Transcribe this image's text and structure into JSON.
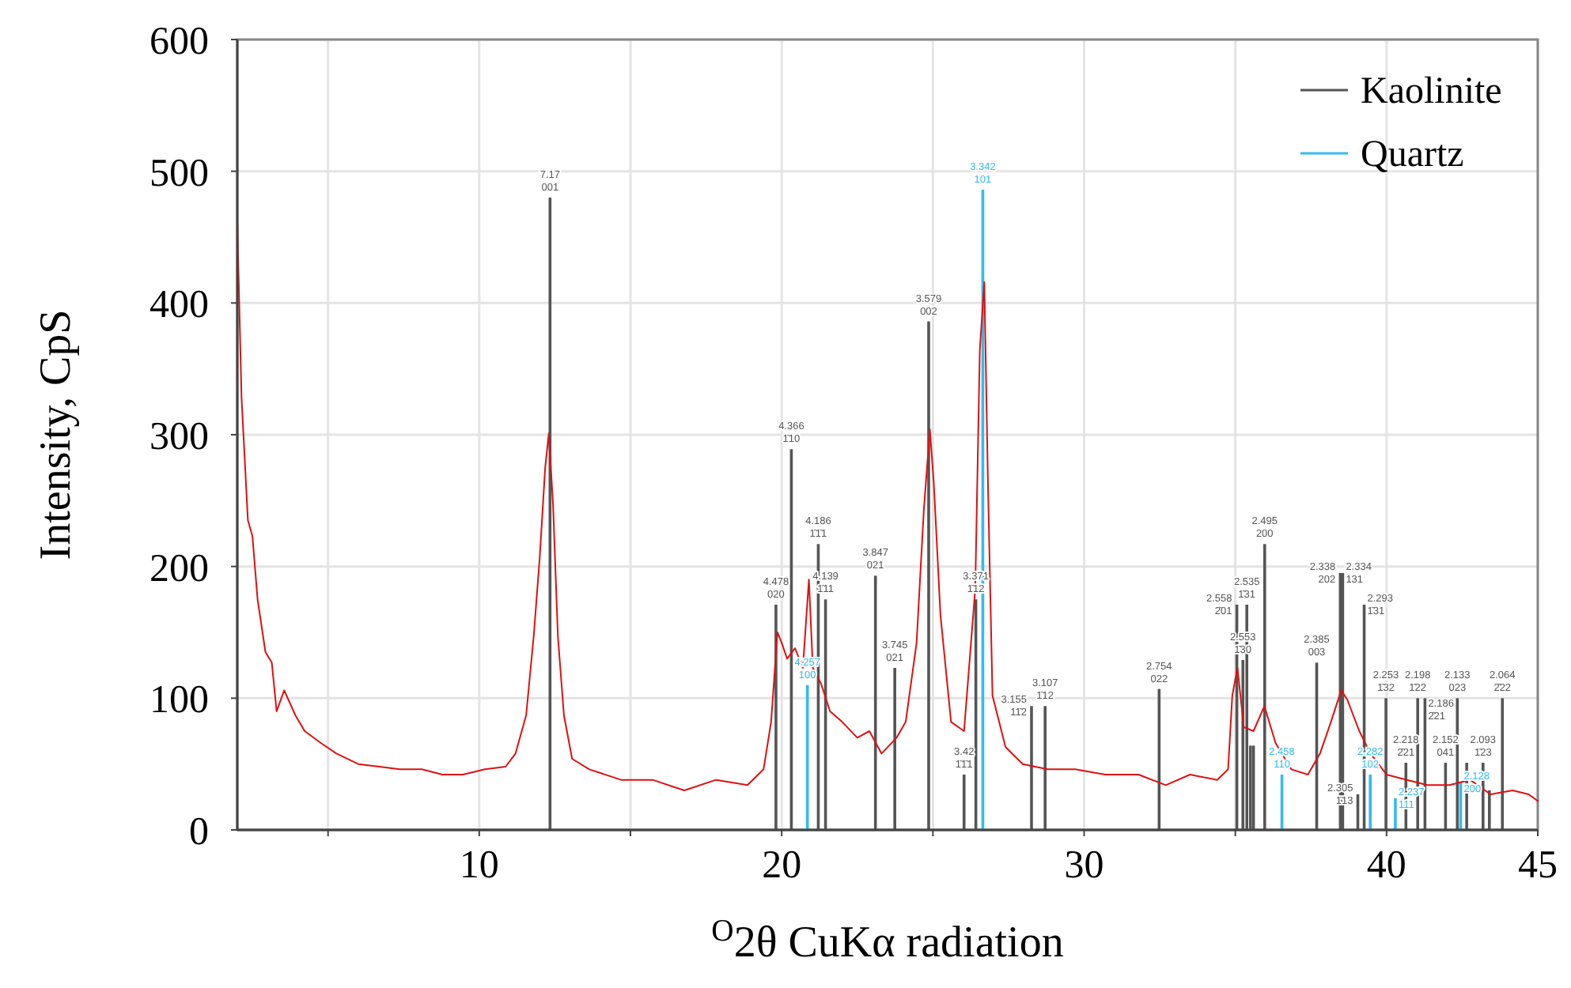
{
  "chart_data": {
    "type": "line",
    "xlabel": "$^{O}$2θ CuKα radiation",
    "ylabel": "Intensity,  CpS",
    "xlim": [
      2,
      45
    ],
    "xticks": [
      {
        "value": 5,
        "label": null
      },
      10,
      {
        "value": 15,
        "label": null
      },
      20,
      {
        "value": 25,
        "label": null
      },
      30,
      {
        "value": 35,
        "label": null
      },
      40,
      45
    ],
    "ylim": [
      0,
      600
    ],
    "yticks": [
      0,
      100,
      200,
      300,
      400,
      500,
      600
    ],
    "grid": true,
    "legend": "top right",
    "series": [
      {
        "color": "#dd1111",
        "x": [
          2.0,
          2.14,
          2.35,
          2.5,
          2.67,
          2.93,
          3.14,
          3.3,
          3.55,
          3.92,
          4.23,
          4.76,
          5.28,
          6.0,
          6.7,
          7.37,
          8.1,
          8.78,
          9.46,
          10.19,
          10.87,
          11.2,
          11.55,
          11.8,
          12.0,
          12.18,
          12.3,
          12.44,
          12.6,
          12.8,
          13.07,
          13.64,
          14.69,
          15.73,
          16.78,
          17.83,
          18.87,
          19.4,
          19.65,
          19.86,
          20.0,
          20.18,
          20.44,
          20.7,
          20.9,
          21.03,
          21.3,
          21.6,
          22.0,
          22.5,
          22.9,
          23.3,
          23.8,
          24.1,
          24.46,
          24.7,
          24.9,
          25.03,
          25.25,
          25.6,
          26.03,
          26.4,
          26.55,
          26.7,
          26.82,
          26.97,
          27.4,
          27.97,
          28.8,
          29.7,
          30.7,
          31.8,
          32.7,
          33.5,
          34.4,
          34.76,
          34.9,
          35.07,
          35.28,
          35.6,
          35.96,
          36.33,
          36.85,
          37.4,
          37.8,
          38.16,
          38.5,
          38.7,
          39.1,
          39.47,
          40.0,
          40.67,
          41.35,
          42.08,
          42.76,
          43.44,
          44.17,
          44.7,
          45.0
        ],
        "values": [
          460,
          328,
          235,
          223,
          175,
          135,
          127,
          90,
          106,
          87,
          75,
          66,
          58,
          50,
          48,
          46,
          46,
          42,
          42,
          46,
          48,
          58,
          87,
          147,
          207,
          275,
          301,
          247,
          147,
          87,
          54,
          46,
          38,
          38,
          30,
          38,
          34,
          46,
          82,
          150,
          142,
          130,
          138,
          123,
          190,
          123,
          111,
          90,
          82,
          70,
          75,
          58,
          70,
          82,
          142,
          243,
          304,
          263,
          163,
          82,
          75,
          183,
          364,
          416,
          263,
          102,
          63,
          50,
          46,
          46,
          42,
          42,
          34,
          42,
          38,
          46,
          102,
          123,
          78,
          75,
          94,
          66,
          46,
          42,
          58,
          82,
          106,
          99,
          75,
          58,
          42,
          38,
          34,
          34,
          38,
          27,
          30,
          27,
          22
        ]
      },
      {
        "type": "bar",
        "name": "Kaolinite",
        "color": "#555555",
        "x": [
          12.34,
          19.81,
          20.32,
          21.21,
          21.45,
          23.1,
          23.74,
          24.86,
          26.03,
          26.42,
          28.26,
          28.71,
          32.48,
          35.05,
          35.25,
          35.38,
          35.5,
          35.6,
          35.97,
          37.69,
          38.47,
          38.55,
          39.05,
          39.26,
          39.98,
          40.64,
          41.03,
          41.27,
          41.95,
          42.34,
          42.65,
          43.19,
          43.4,
          43.83
        ],
        "values": [
          480,
          171,
          289,
          217,
          175,
          193,
          123,
          386,
          42,
          175,
          94,
          94,
          107,
          171,
          129,
          171,
          64,
          64,
          217,
          127,
          195,
          195,
          27,
          171,
          100,
          51,
          100,
          100,
          51,
          100,
          51,
          51,
          30,
          100
        ]
      },
      {
        "type": "bar",
        "name": "Quartz",
        "color": "#33bbee",
        "x": [
          20.85,
          26.65,
          36.54,
          39.46,
          40.29,
          42.45
        ],
        "values": [
          110,
          486,
          42,
          42,
          24,
          36
        ]
      }
    ],
    "annotations": [
      {
        "text": "7.17\n001",
        "x": 12.34,
        "y": 480
      },
      {
        "text": "4.478\n020",
        "x": 19.81,
        "y": 171
      },
      {
        "text": "4.366\n1̄10",
        "x": 20.32,
        "y": 289
      },
      {
        "text": "4.186\n1̄1̄1",
        "x": 21.21,
        "y": 217
      },
      {
        "text": "4.139\n1̄11",
        "x": 21.45,
        "y": 175
      },
      {
        "text": "3.847\n021",
        "x": 23.1,
        "y": 193
      },
      {
        "text": "3.745\n021",
        "x": 23.74,
        "y": 123
      },
      {
        "text": "3.579\n002",
        "x": 24.86,
        "y": 386
      },
      {
        "text": "3.42\n1̄1̄1",
        "x": 26.03,
        "y": 42
      },
      {
        "text": "3.371\n1̄12",
        "x": 26.42,
        "y": 175
      },
      {
        "text": "3.155\n11̄2",
        "x": 28.26,
        "y": 94
      },
      {
        "text": "3.107\n1̄12",
        "x": 28.71,
        "y": 94
      },
      {
        "text": "2.754\n022",
        "x": 32.48,
        "y": 107
      },
      {
        "text": "2.558\n2̄01",
        "x": 35.05,
        "y": 171
      },
      {
        "text": "2.553\n1̄30",
        "x": 35.25,
        "y": 129
      },
      {
        "text": "2.535\n1̄31",
        "x": 35.38,
        "y": 171
      },
      {
        "text": "2.495\n200",
        "x": 35.97,
        "y": 217
      },
      {
        "text": "2.385\n003",
        "x": 37.69,
        "y": 127
      },
      {
        "text": "2.338\n202",
        "x": 38.47,
        "y": 195
      },
      {
        "text": "2.334\n131",
        "x": 38.55,
        "y": 195
      },
      {
        "text": "2.305\n1̄13",
        "x": 39.05,
        "y": 27
      },
      {
        "text": "2.293\n1̄31",
        "x": 39.26,
        "y": 171
      },
      {
        "text": "2.253\n1̄32",
        "x": 39.98,
        "y": 100
      },
      {
        "text": "2.218\n2̄21",
        "x": 40.64,
        "y": 51
      },
      {
        "text": "2.198\n1̄22",
        "x": 41.03,
        "y": 100
      },
      {
        "text": "2.186\n2̄21",
        "x": 41.27,
        "y": 100
      },
      {
        "text": "2.152\n041",
        "x": 41.95,
        "y": 51
      },
      {
        "text": "2.133\n023",
        "x": 42.34,
        "y": 100
      },
      {
        "text": "2.093\n1̄23",
        "x": 43.19,
        "y": 51
      },
      {
        "text": "2.064\n2̄22",
        "x": 43.83,
        "y": 100
      },
      {
        "text": "4.257\n100",
        "x": 20.85,
        "y": 110
      },
      {
        "text": "3.342\n101",
        "x": 26.65,
        "y": 486
      },
      {
        "text": "2.458\n110",
        "x": 36.54,
        "y": 42
      },
      {
        "text": "2.282\n102",
        "x": 39.46,
        "y": 42
      },
      {
        "text": "2.237\n111",
        "x": 40.29,
        "y": 24
      },
      {
        "text": "2.128\n200",
        "x": 42.45,
        "y": 36
      }
    ]
  }
}
